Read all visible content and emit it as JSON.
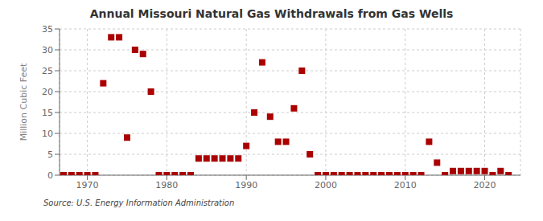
{
  "chart_data": {
    "type": "scatter",
    "title": "Annual Missouri Natural Gas Withdrawals from Gas Wells",
    "ylabel": "Million Cubic Feet",
    "annotations": [
      "Source: U.S. Energy Information Administration"
    ],
    "x": [
      1967,
      1968,
      1969,
      1970,
      1971,
      1972,
      1973,
      1974,
      1975,
      1976,
      1977,
      1978,
      1979,
      1980,
      1981,
      1982,
      1983,
      1984,
      1985,
      1986,
      1987,
      1988,
      1989,
      1990,
      1991,
      1992,
      1993,
      1994,
      1995,
      1996,
      1997,
      1998,
      1999,
      2000,
      2001,
      2002,
      2003,
      2004,
      2005,
      2006,
      2007,
      2008,
      2009,
      2010,
      2011,
      2012,
      2013,
      2014,
      2015,
      2016,
      2017,
      2018,
      2019,
      2020,
      2021,
      2022,
      2023
    ],
    "values": [
      0,
      0,
      0,
      0,
      0,
      22,
      33,
      33,
      9,
      30,
      29,
      20,
      0,
      0,
      0,
      0,
      0,
      4,
      4,
      4,
      4,
      4,
      4,
      7,
      15,
      27,
      14,
      8,
      8,
      16,
      25,
      5,
      0,
      0,
      0,
      0,
      0,
      0,
      0,
      0,
      0,
      0,
      0,
      0,
      0,
      0,
      8,
      3,
      0,
      1,
      1,
      1,
      1,
      1,
      0,
      1,
      0
    ],
    "color": "#aa0000",
    "marker": "square",
    "xlim": [
      1966.5,
      2024.5
    ],
    "ylim": [
      0,
      35
    ],
    "xticks": [
      1970,
      1980,
      1990,
      2000,
      2010,
      2020
    ],
    "yticks": [
      0,
      5,
      10,
      15,
      20,
      25,
      30,
      35
    ],
    "grid": true
  }
}
